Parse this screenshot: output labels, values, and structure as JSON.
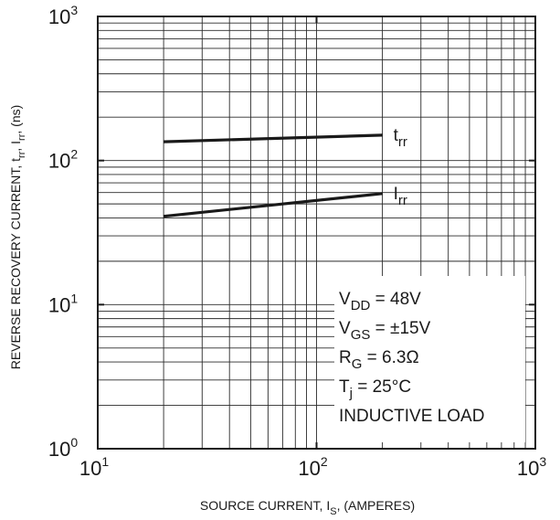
{
  "chart_data": {
    "type": "line",
    "x_scale": "log",
    "y_scale": "log",
    "xlim": [
      10,
      1000
    ],
    "ylim": [
      1,
      1000
    ],
    "grid": true,
    "xlabel": {
      "main": "SOURCE CURRENT, I",
      "sub": "S",
      "tail": ", (AMPERES)"
    },
    "ylabel": "REVERSE RECOVERY CURRENT, t",
    "ylabel_parts": [
      {
        "t": "REVERSE RECOVERY CURRENT, t",
        "sub": false
      },
      {
        "t": "rr",
        "sub": true
      },
      {
        "t": ", I",
        "sub": false
      },
      {
        "t": "rr",
        "sub": true
      },
      {
        "t": ", (ns)",
        "sub": false
      }
    ],
    "x_ticks": [
      {
        "value": 10,
        "base": "10",
        "exp": "1"
      },
      {
        "value": 100,
        "base": "10",
        "exp": "2"
      },
      {
        "value": 1000,
        "base": "10",
        "exp": "3"
      }
    ],
    "y_ticks": [
      {
        "value": 1,
        "base": "10",
        "exp": "0"
      },
      {
        "value": 10,
        "base": "10",
        "exp": "1"
      },
      {
        "value": 100,
        "base": "10",
        "exp": "2"
      },
      {
        "value": 1000,
        "base": "10",
        "exp": "3"
      }
    ],
    "series": [
      {
        "name": "t",
        "name_sub": "rr",
        "x": [
          20,
          200
        ],
        "y": [
          135,
          150
        ]
      },
      {
        "name": "I",
        "name_sub": "rr",
        "x": [
          20,
          200
        ],
        "y": [
          41,
          59
        ]
      }
    ],
    "annotations": [
      {
        "main": "V",
        "sub": "DD",
        "rest": " = 48V"
      },
      {
        "main": "V",
        "sub": "GS",
        "rest": " = ±15V"
      },
      {
        "main": "R",
        "sub": "G",
        "rest": " = 6.3Ω"
      },
      {
        "main": "T",
        "sub": "j",
        "rest": " = 25°C"
      },
      {
        "main": "INDUCTIVE LOAD",
        "sub": "",
        "rest": ""
      }
    ]
  }
}
